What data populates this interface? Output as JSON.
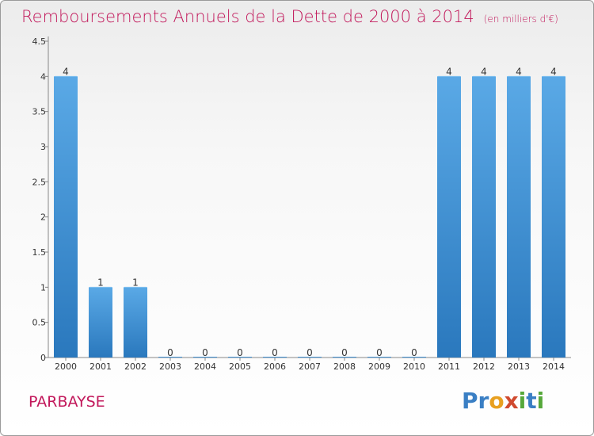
{
  "title": "Remboursements Annuels de la Dette de 2000 à 2014",
  "unit": "(en milliers d'€)",
  "commune": "PARBAYSE",
  "logo": {
    "letters": [
      "P",
      "r",
      "o",
      "x",
      "i",
      "t",
      "i"
    ],
    "colors": [
      "#3a7fc4",
      "#3a7fc4",
      "#e8a020",
      "#d04a2f",
      "#56a83a",
      "#3a7fc4",
      "#56a83a"
    ]
  },
  "chart_data": {
    "type": "bar",
    "categories": [
      "2000",
      "2001",
      "2002",
      "2003",
      "2004",
      "2005",
      "2006",
      "2007",
      "2008",
      "2009",
      "2010",
      "2011",
      "2012",
      "2013",
      "2014"
    ],
    "values": [
      4,
      1,
      1,
      0,
      0,
      0,
      0,
      0,
      0,
      0,
      0,
      4,
      4,
      4,
      4
    ],
    "data_labels": [
      "4",
      "1",
      "1",
      "0",
      "0",
      "0",
      "0",
      "0",
      "0",
      "0",
      "0",
      "4",
      "4",
      "4",
      "4"
    ],
    "ylim": [
      0,
      4.5
    ],
    "yticks": [
      0,
      0.5,
      1,
      1.5,
      2,
      2.5,
      3,
      3.5,
      4,
      4.5
    ],
    "ytick_labels": [
      "0",
      "0.5",
      "1",
      "1.5",
      "2",
      "2.5",
      "3",
      "3.5",
      "4",
      "4.5"
    ],
    "bar_color": "#3a8fd6",
    "bar_color_light": "#5aa9e6"
  }
}
